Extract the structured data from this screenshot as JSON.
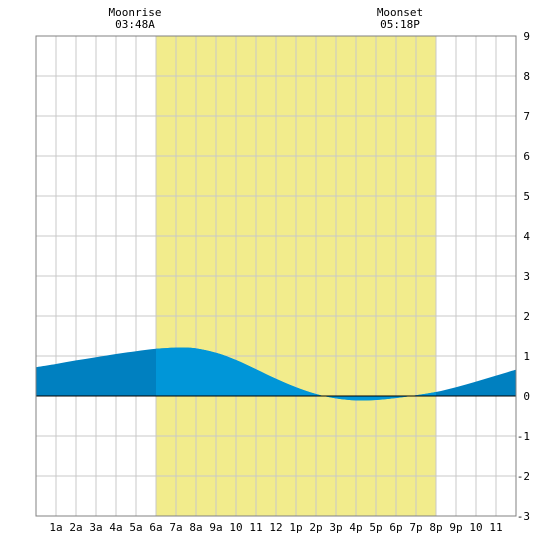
{
  "colors": {
    "daylight": "#f2ec8c",
    "tide_night": "#0080c0",
    "tide_day": "#0096d8",
    "grid": "#c8c8c8",
    "frame": "#808080"
  },
  "annotations": {
    "moonrise": {
      "label": "Moonrise",
      "time": "03:48A"
    },
    "moonset": {
      "label": "Moonset",
      "time": "05:18P"
    }
  },
  "chart_data": {
    "type": "area",
    "title": "",
    "xlabel": "",
    "ylabel": "",
    "xlim": [
      0,
      24
    ],
    "ylim": [
      -3,
      9
    ],
    "grid": true,
    "daylight": {
      "start_hour": 6.0,
      "end_hour": 20.0
    },
    "x_tick_labels": [
      "1a",
      "2a",
      "3a",
      "4a",
      "5a",
      "6a",
      "7a",
      "8a",
      "9a",
      "10",
      "11",
      "12",
      "1p",
      "2p",
      "3p",
      "4p",
      "5p",
      "6p",
      "7p",
      "8p",
      "9p",
      "10",
      "11"
    ],
    "y_tick_labels": [
      "-3",
      "-2",
      "-1",
      "0",
      "1",
      "2",
      "3",
      "4",
      "5",
      "6",
      "7",
      "8",
      "9"
    ],
    "series": [
      {
        "x": [
          0,
          1,
          2,
          3,
          4,
          5,
          6,
          7,
          7.5,
          8,
          9,
          10,
          11,
          12,
          13,
          14,
          15,
          16,
          17,
          18,
          19,
          20,
          21,
          22,
          23,
          24
        ],
        "y": [
          0.72,
          0.8,
          0.89,
          0.97,
          1.05,
          1.12,
          1.18,
          1.21,
          1.21,
          1.19,
          1.08,
          0.9,
          0.67,
          0.43,
          0.22,
          0.05,
          -0.06,
          -0.11,
          -0.1,
          -0.05,
          0.02,
          0.1,
          0.22,
          0.36,
          0.51,
          0.66
        ]
      }
    ]
  }
}
